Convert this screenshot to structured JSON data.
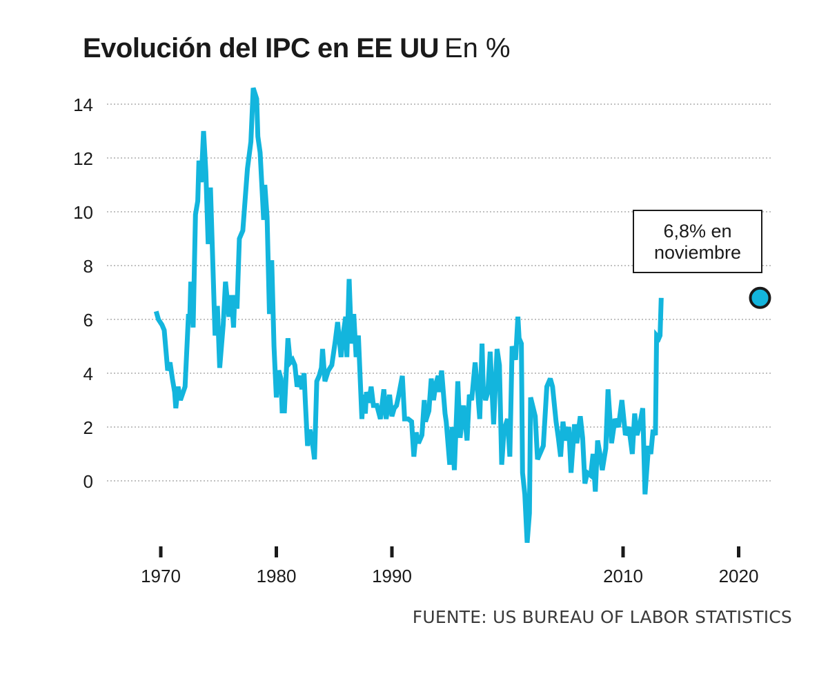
{
  "header": {
    "title": "Evolución del IPC en EE UU",
    "subtitle": "En %"
  },
  "source": "FUENTE: US BUREAU OF LABOR STATISTICS",
  "annotation": {
    "line1": "6,8% en",
    "line2": "noviembre"
  },
  "colors": {
    "line": "#13b5dd",
    "grid": "#9a9a9a",
    "marker_stroke": "#1a1a1a"
  },
  "chart_data": {
    "type": "line",
    "title": "Evolución del IPC en EE UU",
    "subtitle": "En %",
    "ylim": [
      -2.5,
      14.8
    ],
    "xlim": [
      1969.5,
      2021.5
    ],
    "y_ticks": [
      0,
      2,
      4,
      6,
      8,
      10,
      12,
      14
    ],
    "x_ticks": [
      1970,
      1980,
      1990,
      2010,
      2020
    ],
    "grid": "horizontal dotted",
    "series": [
      {
        "highlight": {
          "x": 2021.85,
          "y": 6.8,
          "label": "6,8% en noviembre"
        },
        "points": [
          [
            1969.6,
            6.3
          ],
          [
            1969.8,
            6.0
          ],
          [
            1970.1,
            5.8
          ],
          [
            1970.3,
            5.6
          ],
          [
            1970.6,
            4.1
          ],
          [
            1970.8,
            4.4
          ],
          [
            1971.0,
            3.8
          ],
          [
            1971.2,
            3.3
          ],
          [
            1971.3,
            2.7
          ],
          [
            1971.5,
            3.5
          ],
          [
            1971.7,
            3.0
          ],
          [
            1972.1,
            3.5
          ],
          [
            1972.4,
            6.2
          ],
          [
            1972.5,
            5.9
          ],
          [
            1972.6,
            7.4
          ],
          [
            1972.8,
            5.7
          ],
          [
            1973.0,
            9.9
          ],
          [
            1973.2,
            10.4
          ],
          [
            1973.3,
            11.9
          ],
          [
            1973.5,
            11.1
          ],
          [
            1973.7,
            13.0
          ],
          [
            1973.9,
            11.5
          ],
          [
            1974.1,
            8.8
          ],
          [
            1974.3,
            10.9
          ],
          [
            1974.7,
            5.4
          ],
          [
            1974.9,
            6.5
          ],
          [
            1975.1,
            4.2
          ],
          [
            1975.4,
            5.8
          ],
          [
            1975.6,
            7.4
          ],
          [
            1975.9,
            6.1
          ],
          [
            1976.1,
            6.9
          ],
          [
            1976.3,
            5.7
          ],
          [
            1976.4,
            6.9
          ],
          [
            1976.6,
            6.4
          ],
          [
            1976.8,
            9.0
          ],
          [
            1977.1,
            9.3
          ],
          [
            1977.5,
            11.6
          ],
          [
            1977.8,
            12.6
          ],
          [
            1978.0,
            14.6
          ],
          [
            1978.3,
            14.2
          ],
          [
            1978.4,
            12.8
          ],
          [
            1978.6,
            12.2
          ],
          [
            1978.9,
            9.7
          ],
          [
            1979.0,
            11.0
          ],
          [
            1979.2,
            9.8
          ],
          [
            1979.4,
            6.2
          ],
          [
            1979.6,
            8.2
          ],
          [
            1979.8,
            5.0
          ],
          [
            1980.0,
            3.1
          ],
          [
            1980.2,
            4.1
          ],
          [
            1980.4,
            3.8
          ],
          [
            1980.5,
            2.6
          ],
          [
            1980.7,
            2.6
          ],
          [
            1981.0,
            5.3
          ],
          [
            1981.2,
            4.4
          ],
          [
            1981.4,
            4.5
          ],
          [
            1981.6,
            4.3
          ],
          [
            1981.8,
            3.5
          ],
          [
            1982.1,
            3.9
          ],
          [
            1982.2,
            3.4
          ],
          [
            1982.4,
            4.0
          ],
          [
            1982.5,
            3.0
          ],
          [
            1982.7,
            1.3
          ],
          [
            1982.9,
            1.9
          ],
          [
            1983.1,
            1.5
          ],
          [
            1983.3,
            0.8
          ],
          [
            1983.5,
            3.7
          ],
          [
            1983.7,
            3.9
          ],
          [
            1983.9,
            4.2
          ],
          [
            1984.0,
            4.9
          ],
          [
            1984.2,
            3.7
          ],
          [
            1984.5,
            4.1
          ],
          [
            1984.8,
            4.3
          ],
          [
            1985.1,
            5.2
          ],
          [
            1985.3,
            5.9
          ],
          [
            1985.6,
            4.6
          ],
          [
            1985.8,
            5.5
          ],
          [
            1986.0,
            6.1
          ],
          [
            1986.1,
            4.6
          ],
          [
            1986.3,
            7.5
          ],
          [
            1986.5,
            5.1
          ],
          [
            1986.7,
            6.2
          ],
          [
            1986.9,
            4.6
          ],
          [
            1987.1,
            5.4
          ],
          [
            1987.4,
            2.3
          ],
          [
            1987.5,
            3.2
          ],
          [
            1987.7,
            2.5
          ],
          [
            1987.8,
            3.3
          ],
          [
            1988.0,
            2.9
          ],
          [
            1988.2,
            3.5
          ],
          [
            1988.4,
            2.8
          ],
          [
            1988.7,
            2.8
          ],
          [
            1989.0,
            2.3
          ],
          [
            1989.3,
            3.4
          ],
          [
            1989.5,
            2.3
          ],
          [
            1989.8,
            3.2
          ],
          [
            1990.0,
            2.4
          ],
          [
            1990.2,
            2.7
          ],
          [
            1990.4,
            2.8
          ],
          [
            1990.6,
            3.2
          ],
          [
            1990.9,
            3.9
          ],
          [
            1991.1,
            2.3
          ],
          [
            1991.4,
            2.3
          ],
          [
            1991.7,
            2.2
          ],
          [
            1991.9,
            0.9
          ],
          [
            1992.1,
            1.8
          ],
          [
            1992.3,
            1.4
          ],
          [
            1992.6,
            1.7
          ],
          [
            1992.8,
            3.0
          ],
          [
            1992.9,
            2.2
          ],
          [
            1993.2,
            2.6
          ],
          [
            1993.4,
            3.8
          ],
          [
            1993.6,
            3.0
          ],
          [
            1993.8,
            3.6
          ],
          [
            1994.0,
            3.9
          ],
          [
            1994.1,
            3.3
          ],
          [
            1994.3,
            4.1
          ],
          [
            1994.6,
            2.5
          ],
          [
            1994.7,
            2.2
          ],
          [
            1995.0,
            0.6
          ],
          [
            1995.2,
            2.0
          ],
          [
            1995.4,
            0.4
          ],
          [
            1995.7,
            3.7
          ],
          [
            1995.9,
            1.6
          ],
          [
            1996.2,
            2.8
          ],
          [
            1996.5,
            1.5
          ],
          [
            1996.7,
            3.2
          ],
          [
            1996.9,
            3.0
          ],
          [
            1997.2,
            4.4
          ],
          [
            1997.4,
            3.4
          ],
          [
            1997.6,
            2.3
          ],
          [
            1997.8,
            5.1
          ],
          [
            1997.9,
            3.5
          ],
          [
            1998.1,
            3.0
          ],
          [
            1998.3,
            3.3
          ],
          [
            1998.5,
            4.8
          ],
          [
            1998.8,
            2.1
          ],
          [
            1999.1,
            4.9
          ],
          [
            1999.3,
            4.3
          ],
          [
            1999.5,
            0.6
          ],
          [
            1999.7,
            1.9
          ],
          [
            2000.0,
            2.3
          ],
          [
            2000.2,
            0.9
          ],
          [
            2000.4,
            5.0
          ],
          [
            2000.7,
            4.5
          ],
          [
            2000.9,
            6.1
          ],
          [
            2001.0,
            5.3
          ],
          [
            2001.2,
            5.1
          ],
          [
            2001.3,
            0.3
          ],
          [
            2001.5,
            -0.5
          ],
          [
            2001.7,
            -2.3
          ],
          [
            2001.9,
            -1.2
          ],
          [
            2002.0,
            3.1
          ],
          [
            2002.4,
            2.4
          ],
          [
            2002.6,
            0.8
          ],
          [
            2002.9,
            1.1
          ],
          [
            2003.1,
            1.3
          ],
          [
            2003.4,
            3.5
          ],
          [
            2003.7,
            3.8
          ],
          [
            2003.9,
            3.5
          ],
          [
            2004.2,
            2.2
          ],
          [
            2004.4,
            1.6
          ],
          [
            2004.6,
            0.9
          ],
          [
            2004.8,
            2.2
          ],
          [
            2005.0,
            1.5
          ],
          [
            2005.3,
            2.0
          ],
          [
            2005.5,
            0.3
          ],
          [
            2005.8,
            2.1
          ],
          [
            2006.0,
            1.4
          ],
          [
            2006.3,
            2.4
          ],
          [
            2006.5,
            1.6
          ],
          [
            2006.7,
            -0.1
          ],
          [
            2006.9,
            0.3
          ],
          [
            2007.2,
            0.2
          ],
          [
            2007.4,
            1.0
          ],
          [
            2007.6,
            -0.4
          ],
          [
            2007.8,
            1.5
          ],
          [
            2008.0,
            1.0
          ],
          [
            2008.2,
            0.4
          ],
          [
            2008.5,
            1.2
          ],
          [
            2008.7,
            3.4
          ],
          [
            2009.0,
            1.4
          ],
          [
            2009.3,
            2.3
          ],
          [
            2009.6,
            2.0
          ],
          [
            2009.9,
            3.0
          ],
          [
            2010.2,
            1.7
          ],
          [
            2010.5,
            2.0
          ],
          [
            2010.8,
            1.0
          ],
          [
            2011.0,
            2.5
          ],
          [
            2011.2,
            1.7
          ],
          [
            2011.4,
            2.0
          ],
          [
            2011.7,
            2.7
          ],
          [
            2011.9,
            -0.5
          ],
          [
            2012.2,
            1.3
          ],
          [
            2012.4,
            1.0
          ],
          [
            2012.6,
            1.9
          ],
          [
            2012.8,
            1.7
          ],
          [
            2012.9,
            5.4
          ],
          [
            2013.1,
            5.3
          ],
          [
            2013.2,
            5.4
          ],
          [
            2013.3,
            6.8
          ]
        ]
      }
    ]
  }
}
